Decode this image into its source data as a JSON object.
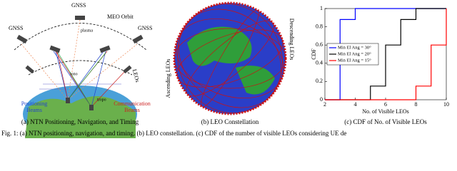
{
  "diagram": {
    "gnss_left": "GNSS",
    "gnss_top": "GNSS",
    "gnss_right": "GNSS",
    "meo_orbit": "MEO Orbit",
    "plasma": "plasma",
    "iono": "iono",
    "tropo": "tropo",
    "leos": "LEOs",
    "positioning_beams": [
      "Positioning",
      "Beams"
    ],
    "communication_beams": [
      "Communication",
      "Beams"
    ],
    "caption": "(a) NTN Positioning, Navigation, and Timing"
  },
  "globe": {
    "descending": "Descending LEOs",
    "ascending": "Ascending LEOs",
    "caption": "(b) LEO Constellation"
  },
  "chart_data": {
    "type": "line",
    "step": "post",
    "caption": "(c) CDF of No. of Visible LEOs",
    "xlabel": "No. of Visible LEOs",
    "ylabel": "CDF",
    "xlim": [
      2,
      10
    ],
    "xticks": [
      2,
      4,
      6,
      8,
      10
    ],
    "ylim": [
      0,
      1
    ],
    "yticks": [
      0,
      0.2,
      0.4,
      0.6,
      0.8,
      1
    ],
    "legend_loc": "center left",
    "series": [
      {
        "name": "Min El Ang = 30°",
        "color": "#0000ff",
        "x": [
          2,
          3,
          4,
          10
        ],
        "values": [
          0,
          0.88,
          1,
          1
        ]
      },
      {
        "name": "Min El Ang = 20°",
        "color": "#000000",
        "x": [
          2,
          5,
          6,
          7,
          8,
          10
        ],
        "values": [
          0,
          0.15,
          0.6,
          0.88,
          1,
          1
        ]
      },
      {
        "name": "Min El Ang = 15°",
        "color": "#ff0000",
        "x": [
          2,
          8,
          9,
          10
        ],
        "values": [
          0,
          0.15,
          0.6,
          1
        ]
      }
    ]
  },
  "figure_caption": "Fig. 1: (a) NTN positioning, navigation, and timing. (b) LEO constellation. (c) CDF of the number of visible LEOs considering UE de"
}
